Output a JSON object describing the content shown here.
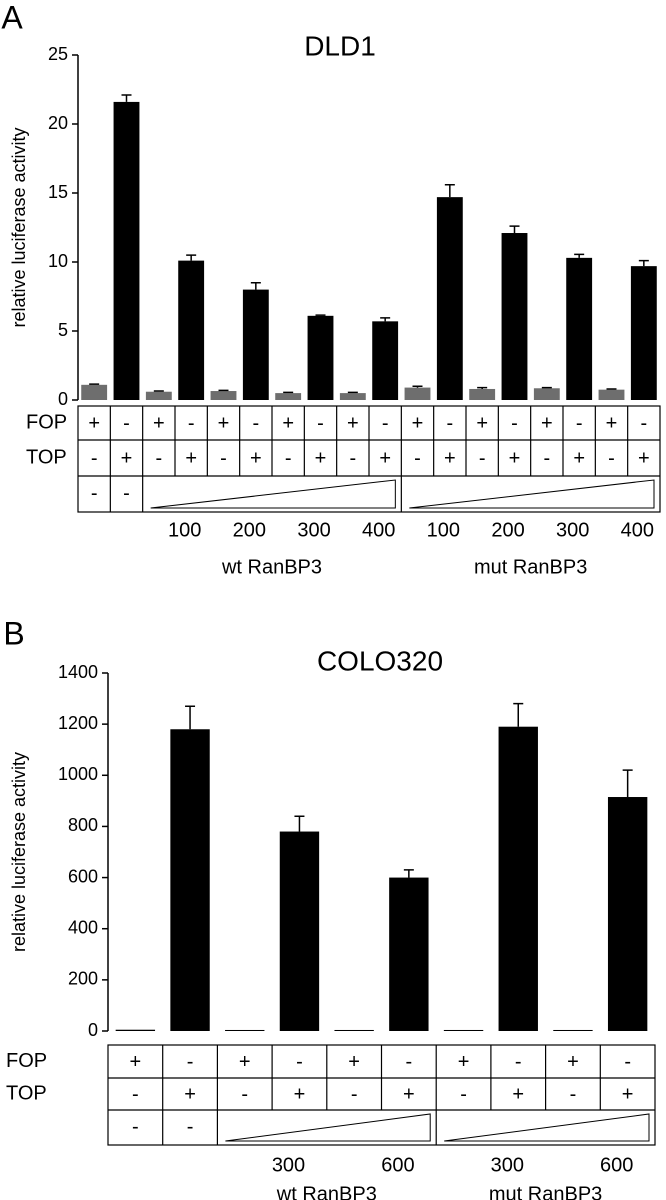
{
  "chart_data": [
    {
      "type": "bar",
      "panel": "A",
      "title": "DLD1",
      "y_label": "relative luciferase activity",
      "ylim": [
        0,
        25
      ],
      "yticks": [
        0,
        5,
        10,
        15,
        20,
        25
      ],
      "values": [
        1.1,
        21.6,
        0.6,
        10.1,
        0.65,
        8.0,
        0.5,
        6.1,
        0.5,
        5.7,
        0.9,
        14.7,
        0.8,
        12.1,
        0.85,
        10.3,
        0.75,
        9.7
      ],
      "errors": [
        0.05,
        0.5,
        0.05,
        0.4,
        0.05,
        0.5,
        0.05,
        0.05,
        0.05,
        0.25,
        0.1,
        0.9,
        0.1,
        0.5,
        0.05,
        0.25,
        0.05,
        0.4
      ],
      "colors": [
        "#6e6e6e",
        "#000000",
        "#6e6e6e",
        "#000000",
        "#6e6e6e",
        "#000000",
        "#6e6e6e",
        "#000000",
        "#6e6e6e",
        "#000000",
        "#6e6e6e",
        "#000000",
        "#6e6e6e",
        "#000000",
        "#6e6e6e",
        "#000000",
        "#6e6e6e",
        "#000000"
      ],
      "table": {
        "row_labels": [
          "FOP",
          "TOP"
        ],
        "rows": [
          [
            "+",
            "-",
            "+",
            "-",
            "+",
            "-",
            "+",
            "-",
            "+",
            "-",
            "+",
            "-",
            "+",
            "-",
            "+",
            "-",
            "+",
            "-"
          ],
          [
            "-",
            "+",
            "-",
            "+",
            "-",
            "+",
            "-",
            "+",
            "-",
            "+",
            "-",
            "+",
            "-",
            "+",
            "-",
            "+",
            "-",
            "+"
          ]
        ],
        "dose_row": [
          "-",
          "-"
        ],
        "doses": [
          100,
          200,
          300,
          400,
          100,
          200,
          300,
          400
        ],
        "groups": [
          "wt RanBP3",
          "mut RanBP3"
        ]
      }
    },
    {
      "type": "bar",
      "panel": "B",
      "title": "COLO320",
      "y_label": "relative luciferase activity",
      "ylim": [
        0,
        1400
      ],
      "yticks": [
        0,
        200,
        400,
        600,
        800,
        1000,
        1200,
        1400
      ],
      "values": [
        5,
        1180,
        4,
        780,
        4,
        600,
        4,
        1190,
        4,
        915
      ],
      "errors": [
        0,
        90,
        0,
        60,
        0,
        30,
        0,
        90,
        0,
        105
      ],
      "colors": [
        "#000000",
        "#000000",
        "#000000",
        "#000000",
        "#000000",
        "#000000",
        "#000000",
        "#000000",
        "#000000",
        "#000000"
      ],
      "table": {
        "row_labels": [
          "FOP",
          "TOP"
        ],
        "rows": [
          [
            "+",
            "-",
            "+",
            "-",
            "+",
            "-",
            "+",
            "-",
            "+",
            "-"
          ],
          [
            "-",
            "+",
            "-",
            "+",
            "-",
            "+",
            "-",
            "+",
            "-",
            "+"
          ]
        ],
        "dose_row": [
          "-",
          "-"
        ],
        "doses": [
          300,
          600,
          300,
          600
        ],
        "groups": [
          "wt RanBP3",
          "mut RanBP3"
        ]
      }
    }
  ]
}
